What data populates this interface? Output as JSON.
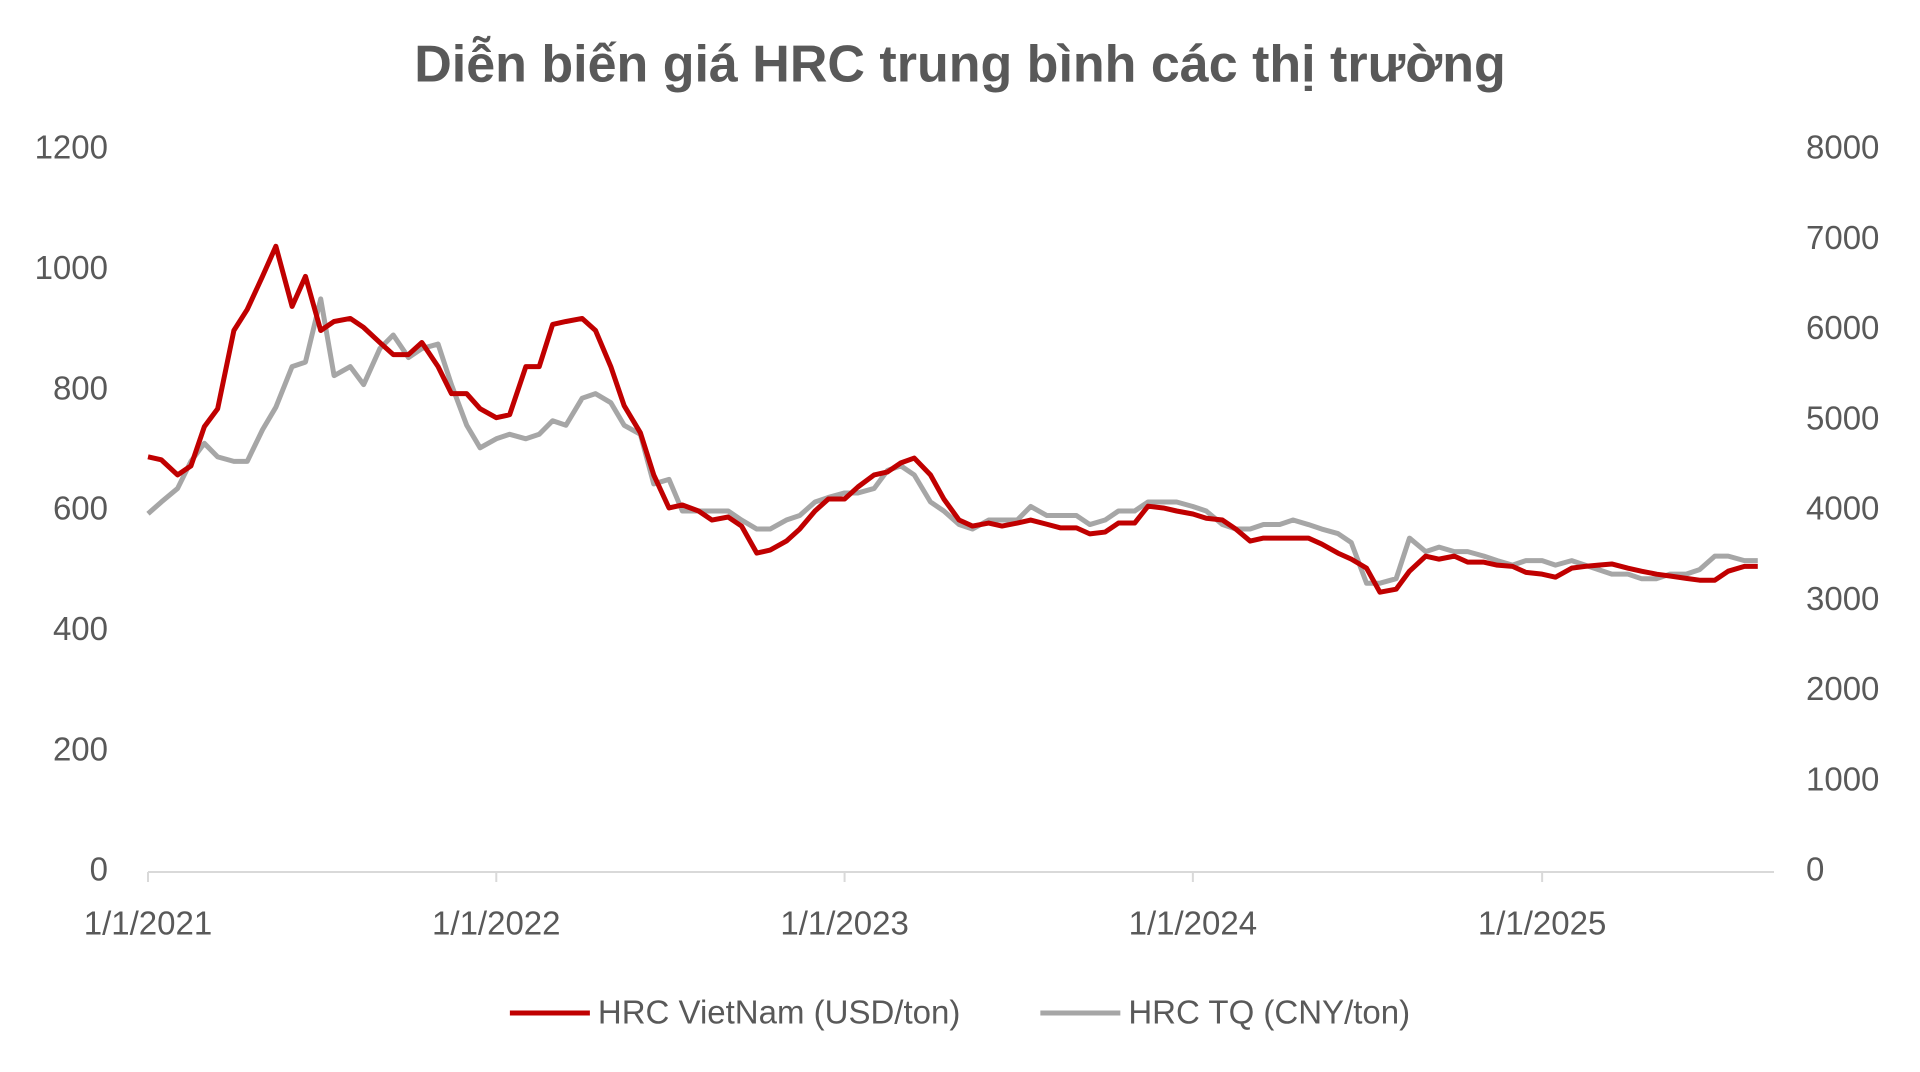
{
  "chart_data": {
    "type": "line",
    "title": "Diễn biến giá HRC trung bình các thị trường",
    "x": [
      "2021-01-01",
      "2021-01-15",
      "2021-02-01",
      "2021-02-15",
      "2021-03-01",
      "2021-03-15",
      "2021-04-01",
      "2021-04-15",
      "2021-05-01",
      "2021-05-15",
      "2021-06-01",
      "2021-06-15",
      "2021-07-01",
      "2021-07-15",
      "2021-08-01",
      "2021-08-15",
      "2021-09-01",
      "2021-09-15",
      "2021-10-01",
      "2021-10-15",
      "2021-11-01",
      "2021-11-15",
      "2021-12-01",
      "2021-12-15",
      "2022-01-01",
      "2022-01-15",
      "2022-02-01",
      "2022-02-15",
      "2022-03-01",
      "2022-03-15",
      "2022-04-01",
      "2022-04-15",
      "2022-05-01",
      "2022-05-15",
      "2022-06-01",
      "2022-06-15",
      "2022-07-01",
      "2022-07-15",
      "2022-08-01",
      "2022-08-15",
      "2022-09-01",
      "2022-09-15",
      "2022-10-01",
      "2022-10-15",
      "2022-11-01",
      "2022-11-15",
      "2022-12-01",
      "2022-12-15",
      "2023-01-01",
      "2023-01-15",
      "2023-02-01",
      "2023-02-15",
      "2023-03-01",
      "2023-03-15",
      "2023-04-01",
      "2023-04-15",
      "2023-05-01",
      "2023-05-15",
      "2023-06-01",
      "2023-06-15",
      "2023-07-01",
      "2023-07-15",
      "2023-08-01",
      "2023-08-15",
      "2023-09-01",
      "2023-09-15",
      "2023-10-01",
      "2023-10-15",
      "2023-11-01",
      "2023-11-15",
      "2023-12-01",
      "2023-12-15",
      "2024-01-01",
      "2024-01-15",
      "2024-02-01",
      "2024-02-15",
      "2024-03-01",
      "2024-03-15",
      "2024-04-01",
      "2024-04-15",
      "2024-05-01",
      "2024-05-15",
      "2024-06-01",
      "2024-06-15",
      "2024-07-01",
      "2024-07-15",
      "2024-08-01",
      "2024-08-15",
      "2024-09-01",
      "2024-09-15",
      "2024-10-01",
      "2024-10-15",
      "2024-11-01",
      "2024-11-15",
      "2024-12-01",
      "2024-12-15",
      "2025-01-01",
      "2025-01-15",
      "2025-02-01",
      "2025-02-15",
      "2025-03-01",
      "2025-03-15",
      "2025-04-01",
      "2025-04-15",
      "2025-05-01",
      "2025-05-15",
      "2025-06-01",
      "2025-06-15",
      "2025-07-01",
      "2025-07-15",
      "2025-08-01",
      "2025-08-15"
    ],
    "series": [
      {
        "name": "HRC VietNam (USD/ton)",
        "color": "#c00000",
        "axis": "y",
        "values": [
          690,
          685,
          660,
          675,
          740,
          770,
          900,
          935,
          990,
          1040,
          940,
          990,
          900,
          915,
          920,
          905,
          880,
          860,
          860,
          880,
          840,
          795,
          795,
          770,
          755,
          760,
          840,
          840,
          910,
          915,
          920,
          900,
          840,
          775,
          730,
          660,
          605,
          610,
          600,
          585,
          590,
          575,
          530,
          535,
          550,
          570,
          600,
          620,
          620,
          640,
          660,
          665,
          680,
          688,
          660,
          620,
          585,
          575,
          580,
          575,
          580,
          585,
          578,
          572,
          572,
          562,
          565,
          580,
          580,
          608,
          605,
          600,
          595,
          588,
          585,
          570,
          550,
          555,
          555,
          555,
          555,
          545,
          530,
          520,
          505,
          465,
          470,
          500,
          525,
          520,
          525,
          515,
          515,
          510,
          508,
          498,
          495,
          490,
          505,
          508,
          510,
          512,
          505,
          500,
          495,
          492,
          488,
          485,
          485,
          500,
          508,
          508
        ]
      },
      {
        "name": "HRC TQ (CNY/ton)",
        "color": "#a6a6a6",
        "axis": "y2",
        "values": [
          3970,
          4100,
          4250,
          4550,
          4750,
          4600,
          4550,
          4550,
          4900,
          5150,
          5600,
          5650,
          6350,
          5500,
          5600,
          5400,
          5800,
          5950,
          5700,
          5800,
          5850,
          5400,
          4950,
          4700,
          4800,
          4850,
          4800,
          4850,
          5000,
          4950,
          5250,
          5300,
          5200,
          4950,
          4850,
          4300,
          4350,
          4000,
          4000,
          4000,
          4000,
          3900,
          3800,
          3800,
          3900,
          3950,
          4100,
          4150,
          4200,
          4200,
          4250,
          4450,
          4500,
          4400,
          4100,
          4000,
          3850,
          3800,
          3900,
          3900,
          3900,
          4050,
          3950,
          3950,
          3950,
          3850,
          3900,
          4000,
          4000,
          4100,
          4100,
          4100,
          4050,
          4000,
          3850,
          3800,
          3800,
          3850,
          3850,
          3900,
          3850,
          3800,
          3750,
          3650,
          3200,
          3200,
          3250,
          3700,
          3550,
          3600,
          3550,
          3550,
          3500,
          3450,
          3400,
          3450,
          3450,
          3400,
          3450,
          3400,
          3350,
          3300,
          3300,
          3250,
          3250,
          3300,
          3300,
          3350,
          3500,
          3500,
          3450,
          3450
        ]
      }
    ],
    "xlim": [
      "2021-01-01",
      "2025-09-01"
    ],
    "xticks": [
      {
        "value": "2021-01-01",
        "label": "1/1/2021"
      },
      {
        "value": "2022-01-01",
        "label": "1/1/2022"
      },
      {
        "value": "2023-01-01",
        "label": "1/1/2023"
      },
      {
        "value": "2024-01-01",
        "label": "1/1/2024"
      },
      {
        "value": "2025-01-01",
        "label": "1/1/2025"
      }
    ],
    "ylim": [
      0,
      1200
    ],
    "yticks": [
      0,
      200,
      400,
      600,
      800,
      1000,
      1200
    ],
    "y2lim": [
      0,
      8000
    ],
    "y2ticks": [
      0,
      1000,
      2000,
      3000,
      4000,
      5000,
      6000,
      7000,
      8000
    ],
    "legend": "bottom"
  }
}
